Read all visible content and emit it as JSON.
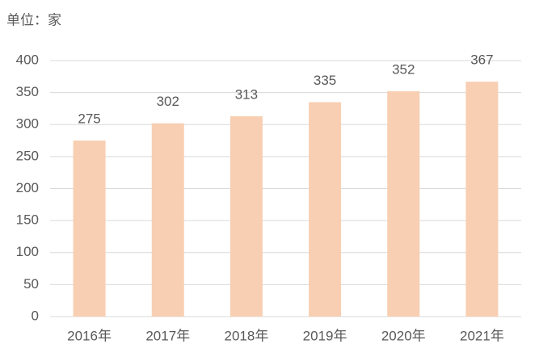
{
  "chart_data": {
    "type": "bar",
    "unit_label": "单位：家",
    "categories": [
      "2016年",
      "2017年",
      "2018年",
      "2019年",
      "2020年",
      "2021年"
    ],
    "values": [
      275,
      302,
      313,
      335,
      352,
      367
    ],
    "color": "#f8cfb2",
    "ylim": [
      0,
      400
    ],
    "yticks": [
      0,
      50,
      100,
      150,
      200,
      250,
      300,
      350,
      400
    ],
    "grid": true
  }
}
